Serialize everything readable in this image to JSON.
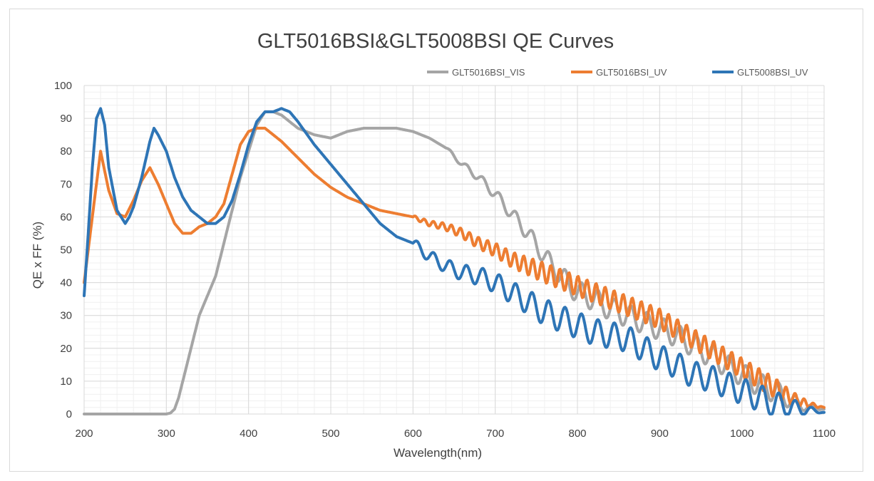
{
  "chart_data": {
    "type": "line",
    "title": "GLT5016BSI&GLT5008BSI QE Curves",
    "xlabel": "Wavelength(nm)",
    "ylabel": "QE x FF (%)",
    "xlim": [
      200,
      1100
    ],
    "ylim": [
      0,
      100
    ],
    "xticks": [
      200,
      300,
      400,
      500,
      600,
      700,
      800,
      900,
      1000,
      1100
    ],
    "yticks": [
      0,
      10,
      20,
      30,
      40,
      50,
      60,
      70,
      80,
      90,
      100
    ],
    "grid": true,
    "legend_position": "top-right",
    "series": [
      {
        "name": "GLT5016BSI_VIS",
        "color": "#a5a5a5",
        "x": [
          200,
          250,
          300,
          305,
          310,
          315,
          320,
          330,
          340,
          350,
          360,
          370,
          380,
          390,
          400,
          410,
          420,
          430,
          440,
          460,
          480,
          500,
          520,
          540,
          560,
          580,
          600,
          620,
          640,
          660,
          680,
          700,
          720,
          740,
          760,
          780,
          800,
          820,
          840,
          860,
          880,
          900,
          920,
          940,
          960,
          980,
          1000,
          1020,
          1040,
          1060,
          1080,
          1100
        ],
        "y": [
          0,
          0,
          0,
          0.3,
          1.5,
          5,
          10,
          20,
          30,
          36,
          42,
          52,
          62,
          72,
          80,
          88,
          92,
          92,
          91,
          87,
          85,
          84,
          86,
          87,
          87,
          87,
          86,
          84,
          81,
          76,
          72,
          67,
          61,
          55,
          48,
          42,
          37,
          35,
          32,
          30,
          28,
          26,
          24,
          21,
          18,
          15,
          12,
          9,
          7,
          4,
          2,
          1.5
        ],
        "osc_start": 640,
        "osc_amp": [
          0.5,
          3.5
        ],
        "osc_period": 20
      },
      {
        "name": "GLT5016BSI_UV",
        "color": "#ed7d31",
        "x": [
          200,
          210,
          220,
          230,
          240,
          250,
          260,
          270,
          280,
          290,
          300,
          310,
          320,
          330,
          340,
          350,
          360,
          370,
          380,
          390,
          400,
          410,
          420,
          430,
          440,
          460,
          480,
          500,
          520,
          540,
          560,
          580,
          600,
          620,
          640,
          660,
          680,
          700,
          720,
          740,
          760,
          780,
          800,
          820,
          840,
          860,
          880,
          900,
          920,
          940,
          960,
          980,
          1000,
          1020,
          1040,
          1060,
          1080,
          1100
        ],
        "y": [
          40,
          60,
          80,
          68,
          61,
          60,
          65,
          71,
          75,
          70,
          64,
          58,
          55,
          55,
          57,
          58,
          60,
          64,
          73,
          82,
          86,
          87,
          87,
          85,
          83,
          78,
          73,
          69,
          66,
          64,
          62,
          61,
          60,
          58,
          57,
          55,
          52,
          50,
          47,
          45,
          43,
          41,
          39,
          37,
          35,
          33,
          31,
          29,
          26,
          23,
          20,
          17,
          14,
          11,
          8,
          5,
          3,
          2
        ],
        "osc_start": 600,
        "osc_amp": [
          0.5,
          3
        ],
        "osc_period": 11
      },
      {
        "name": "GLT5008BSI_UV",
        "color": "#2e75b6",
        "x": [
          200,
          205,
          210,
          215,
          220,
          225,
          230,
          240,
          250,
          255,
          260,
          270,
          280,
          285,
          290,
          300,
          310,
          320,
          330,
          340,
          350,
          360,
          370,
          380,
          390,
          400,
          410,
          420,
          430,
          440,
          450,
          460,
          480,
          500,
          520,
          540,
          560,
          580,
          600,
          620,
          640,
          660,
          680,
          700,
          720,
          740,
          760,
          780,
          800,
          820,
          840,
          860,
          880,
          900,
          920,
          940,
          960,
          980,
          1000,
          1020,
          1040,
          1060,
          1080,
          1100
        ],
        "y": [
          36,
          55,
          75,
          90,
          93,
          88,
          75,
          62,
          58,
          60,
          63,
          72,
          83,
          87,
          85,
          80,
          72,
          66,
          62,
          60,
          58,
          58,
          60,
          65,
          73,
          82,
          89,
          92,
          92,
          93,
          92,
          89,
          82,
          76,
          70,
          64,
          58,
          54,
          52,
          48,
          45,
          43,
          42,
          40,
          37,
          34,
          31,
          29,
          27,
          25,
          24,
          23,
          20,
          17,
          15,
          12,
          11,
          9,
          7,
          5,
          3,
          2,
          1.2,
          0.5
        ],
        "osc_start": 600,
        "osc_amp": [
          1.5,
          4
        ],
        "osc_period": 20
      }
    ]
  }
}
